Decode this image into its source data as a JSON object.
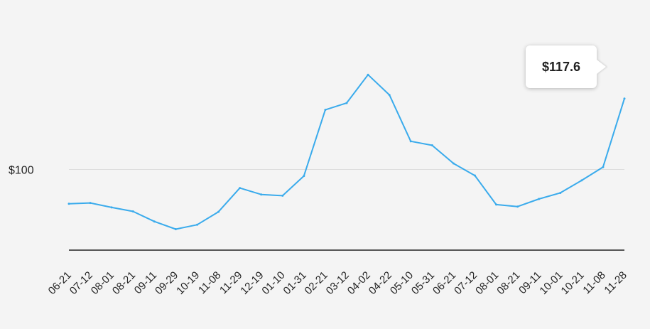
{
  "chart_data": {
    "type": "line",
    "title": "",
    "xlabel": "",
    "ylabel": "",
    "ylim": [
      80,
      135
    ],
    "y_tick_labels": [
      {
        "value": 100,
        "label": "$100"
      }
    ],
    "x_tick_labels": [
      "06-21",
      "07-12",
      "08-01",
      "08-21",
      "09-11",
      "09-29",
      "10-19",
      "11-08",
      "11-29",
      "12-19",
      "01-10",
      "01-31",
      "02-21",
      "03-12",
      "04-02",
      "04-22",
      "05-10",
      "05-31",
      "06-21",
      "07-12",
      "08-01",
      "08-21",
      "09-11",
      "10-01",
      "10-21",
      "11-08",
      "11-28"
    ],
    "series": [
      {
        "x": [
          "06-21",
          "07-12",
          "08-01",
          "08-21",
          "09-11",
          "09-29",
          "10-19",
          "11-08",
          "11-29",
          "12-19",
          "01-10",
          "01-31",
          "02-21",
          "03-12",
          "04-02",
          "04-22",
          "05-10",
          "05-31",
          "06-21",
          "07-12",
          "08-01",
          "08-21",
          "09-11",
          "10-01",
          "10-21",
          "11-08",
          "11-28"
        ],
        "values": [
          91.5,
          91.7,
          90.6,
          89.6,
          87.1,
          85.2,
          86.3,
          89.5,
          95.4,
          93.8,
          93.5,
          98.4,
          114.8,
          116.5,
          123.5,
          118.5,
          107.0,
          106.0,
          101.5,
          98.5,
          91.3,
          90.8,
          92.7,
          94.2,
          97.3,
          100.6,
          117.6
        ]
      }
    ],
    "line_color": "#3aabec",
    "grid": "horizontal",
    "last_value_label": "$117.6"
  }
}
